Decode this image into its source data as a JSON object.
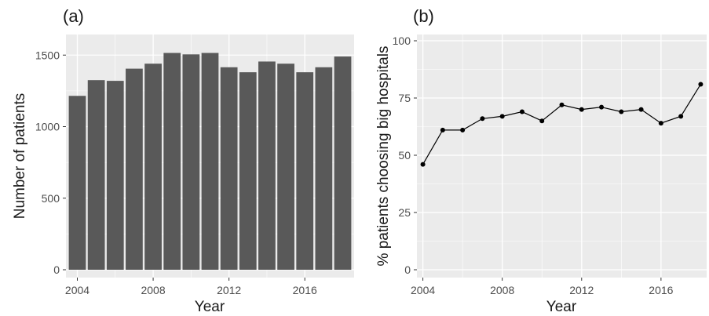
{
  "chart_data": [
    {
      "type": "bar",
      "panel_label": "(a)",
      "xlabel": "Year",
      "ylabel": "Number of patients",
      "x": [
        2004,
        2005,
        2006,
        2007,
        2008,
        2009,
        2010,
        2011,
        2012,
        2013,
        2014,
        2015,
        2016,
        2017,
        2018
      ],
      "values": [
        1215,
        1325,
        1320,
        1405,
        1440,
        1515,
        1505,
        1515,
        1415,
        1380,
        1455,
        1440,
        1380,
        1415,
        1490
      ],
      "xticks": [
        "2004",
        "2008",
        "2012",
        "2016"
      ],
      "yticks": [
        "0",
        "500",
        "1000",
        "1500"
      ],
      "ylim": [
        0,
        1600
      ],
      "grid": true,
      "colors": {
        "bar": "#595959",
        "panel": "#ebebeb",
        "grid": "#ffffff"
      }
    },
    {
      "type": "line",
      "panel_label": "(b)",
      "xlabel": "Year",
      "ylabel": "% patients choosing big hospitals",
      "x": [
        2004,
        2005,
        2006,
        2007,
        2008,
        2009,
        2010,
        2011,
        2012,
        2013,
        2014,
        2015,
        2016,
        2017,
        2018
      ],
      "values": [
        46,
        61,
        61,
        66,
        67,
        69,
        65,
        72,
        70,
        71,
        69,
        70,
        64,
        67,
        81
      ],
      "xticks": [
        "2004",
        "2008",
        "2012",
        "2016"
      ],
      "yticks": [
        "0",
        "25",
        "50",
        "75",
        "100"
      ],
      "ylim": [
        0,
        100
      ],
      "grid": true,
      "markers": true,
      "colors": {
        "line": "#000000",
        "panel": "#ebebeb",
        "grid": "#ffffff"
      }
    }
  ]
}
